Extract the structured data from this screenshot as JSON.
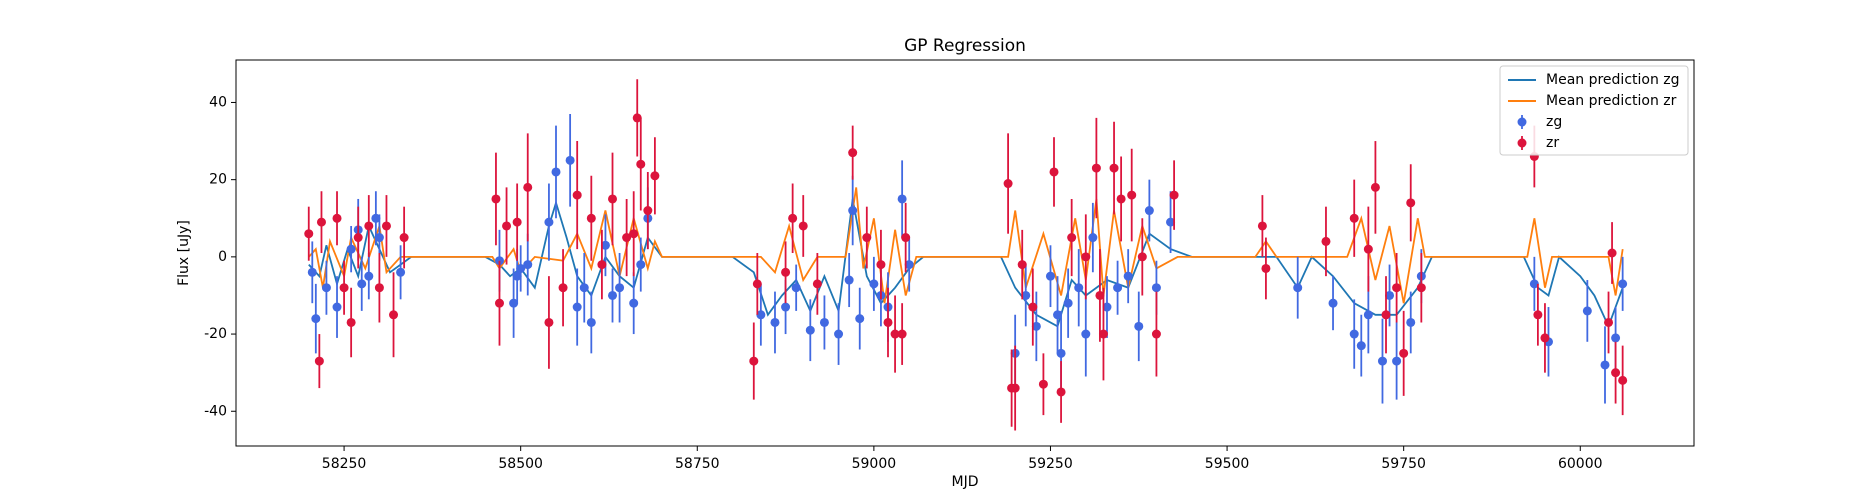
{
  "chart_data": {
    "type": "scatter",
    "title": "GP Regression",
    "xlabel": "MJD",
    "ylabel": "Flux [uJy]",
    "xlim": [
      58097,
      60161
    ],
    "ylim": [
      -49,
      51
    ],
    "xticks": [
      58250,
      58500,
      58750,
      59000,
      59250,
      59500,
      59750,
      60000
    ],
    "yticks": [
      -40,
      -20,
      0,
      20,
      40
    ],
    "legend": "upper right",
    "series": [
      {
        "name": "Mean prediction zg",
        "kind": "line",
        "color": "#1f77b4",
        "x": [
          58200,
          58215,
          58225,
          58240,
          58255,
          58270,
          58285,
          58300,
          58315,
          58330,
          58345,
          58450,
          58470,
          58485,
          58500,
          58520,
          58540,
          58550,
          58565,
          58580,
          58600,
          58620,
          58640,
          58660,
          58680,
          58700,
          58800,
          58830,
          58850,
          58870,
          58890,
          58910,
          58930,
          58950,
          58970,
          58990,
          59010,
          59030,
          59050,
          59070,
          59180,
          59200,
          59230,
          59260,
          59280,
          59300,
          59330,
          59360,
          59390,
          59420,
          59450,
          59570,
          59600,
          59620,
          59650,
          59680,
          59710,
          59740,
          59770,
          59790,
          59920,
          59940,
          59955,
          59970,
          60000,
          60020,
          60040,
          60060
        ],
        "values": [
          -2,
          -5,
          3,
          -7,
          2,
          -5,
          8,
          2,
          -4,
          -2,
          0,
          0,
          -2,
          -5,
          -3,
          -8,
          8,
          14,
          5,
          -5,
          -10,
          0,
          -5,
          -8,
          5,
          0,
          0,
          -4,
          -15,
          -10,
          -6,
          -14,
          -5,
          -14,
          15,
          -5,
          -12,
          -8,
          -3,
          0,
          0,
          -8,
          -15,
          -18,
          -6,
          -10,
          -6,
          -8,
          6,
          2,
          0,
          0,
          -8,
          0,
          -5,
          -12,
          -15,
          -15,
          -8,
          0,
          0,
          -8,
          -10,
          0,
          -5,
          -10,
          -18,
          -8
        ]
      },
      {
        "name": "Mean prediction zr",
        "kind": "line",
        "color": "#ff7f0e",
        "x": [
          58200,
          58210,
          58220,
          58230,
          58250,
          58260,
          58280,
          58300,
          58310,
          58330,
          58460,
          58470,
          58490,
          58500,
          58520,
          58560,
          58580,
          58600,
          58620,
          58640,
          58660,
          58680,
          58690,
          58700,
          58840,
          58860,
          58880,
          58900,
          58920,
          58960,
          58975,
          58985,
          59000,
          59015,
          59030,
          59045,
          59060,
          59190,
          59200,
          59215,
          59240,
          59265,
          59285,
          59300,
          59315,
          59325,
          59340,
          59360,
          59380,
          59400,
          59430,
          59540,
          59555,
          59570,
          59670,
          59690,
          59710,
          59730,
          59750,
          59770,
          59780,
          59925,
          59935,
          59950,
          59960,
          60040,
          60050,
          60060
        ],
        "values": [
          0,
          2,
          -8,
          4,
          -5,
          5,
          -3,
          8,
          -4,
          0,
          0,
          -3,
          2,
          -4,
          0,
          -1,
          6,
          -3,
          12,
          -5,
          10,
          -3,
          4,
          0,
          0,
          -4,
          8,
          -6,
          0,
          0,
          18,
          -3,
          10,
          -12,
          7,
          -10,
          0,
          0,
          12,
          -8,
          6,
          -10,
          10,
          -6,
          15,
          -10,
          12,
          -8,
          8,
          -3,
          0,
          0,
          4,
          0,
          0,
          10,
          -6,
          8,
          -12,
          10,
          0,
          0,
          10,
          -8,
          0,
          0,
          -10,
          2
        ]
      },
      {
        "name": "zg",
        "kind": "errorbar",
        "color": "#4169e1",
        "x": [
          58205,
          58210,
          58225,
          58240,
          58260,
          58270,
          58275,
          58285,
          58295,
          58300,
          58330,
          58470,
          58490,
          58495,
          58500,
          58510,
          58540,
          58550,
          58570,
          58580,
          58590,
          58600,
          58620,
          58630,
          58640,
          58660,
          58670,
          58680,
          58840,
          58860,
          58875,
          58890,
          58910,
          58930,
          58950,
          58965,
          58970,
          58980,
          59000,
          59010,
          59020,
          59040,
          59050,
          59200,
          59215,
          59230,
          59250,
          59260,
          59265,
          59275,
          59290,
          59300,
          59310,
          59330,
          59345,
          59360,
          59375,
          59390,
          59400,
          59420,
          59600,
          59650,
          59680,
          59690,
          59700,
          59720,
          59730,
          59740,
          59760,
          59775,
          59935,
          59955,
          60010,
          60035,
          60050,
          60060
        ],
        "values": [
          -4,
          -16,
          -8,
          -13,
          2,
          7,
          -7,
          -5,
          10,
          5,
          -4,
          -1,
          -12,
          -5,
          -3,
          -2,
          9,
          22,
          25,
          -13,
          -8,
          -17,
          3,
          -10,
          -8,
          -12,
          -2,
          10,
          -15,
          -17,
          -13,
          -8,
          -19,
          -17,
          -20,
          -6,
          12,
          -16,
          -7,
          -10,
          -13,
          15,
          -2,
          -25,
          -10,
          -18,
          -5,
          -15,
          -25,
          -12,
          -8,
          -20,
          5,
          -13,
          -8,
          -5,
          -18,
          12,
          -8,
          9,
          -8,
          -12,
          -20,
          -23,
          -15,
          -27,
          -10,
          -27,
          -17,
          -5,
          -7,
          -22,
          -14,
          -28,
          -21,
          -7
        ],
        "errors": [
          8,
          9,
          7,
          8,
          6,
          8,
          7,
          6,
          7,
          6,
          7,
          8,
          9,
          7,
          6,
          8,
          10,
          12,
          12,
          10,
          9,
          8,
          8,
          7,
          9,
          8,
          7,
          8,
          8,
          8,
          7,
          6,
          8,
          7,
          8,
          7,
          9,
          8,
          7,
          8,
          9,
          10,
          7,
          10,
          8,
          9,
          8,
          10,
          11,
          9,
          10,
          11,
          9,
          8,
          7,
          7,
          9,
          8,
          7,
          8,
          8,
          7,
          9,
          8,
          10,
          11,
          8,
          10,
          8,
          7,
          7,
          9,
          8,
          10,
          8,
          7
        ]
      },
      {
        "name": "zr",
        "kind": "errorbar",
        "color": "#dc143c",
        "x": [
          58200,
          58215,
          58218,
          58240,
          58250,
          58260,
          58270,
          58285,
          58300,
          58310,
          58320,
          58335,
          58465,
          58470,
          58480,
          58495,
          58510,
          58540,
          58560,
          58580,
          58600,
          58615,
          58630,
          58650,
          58660,
          58665,
          58670,
          58680,
          58690,
          58830,
          58835,
          58875,
          58885,
          58900,
          58920,
          58970,
          58990,
          59010,
          59020,
          59030,
          59040,
          59045,
          59190,
          59195,
          59200,
          59210,
          59225,
          59240,
          59255,
          59265,
          59280,
          59300,
          59315,
          59320,
          59325,
          59340,
          59350,
          59365,
          59380,
          59400,
          59425,
          59550,
          59555,
          59640,
          59680,
          59700,
          59710,
          59725,
          59740,
          59750,
          59760,
          59775,
          59935,
          59940,
          59950,
          60040,
          60045,
          60050,
          60060
        ],
        "values": [
          6,
          -27,
          9,
          10,
          -8,
          -17,
          5,
          8,
          -8,
          8,
          -15,
          5,
          15,
          -12,
          8,
          9,
          18,
          -17,
          -8,
          16,
          10,
          -2,
          15,
          5,
          6,
          36,
          24,
          12,
          21,
          -27,
          -7,
          -4,
          10,
          8,
          -7,
          27,
          5,
          -2,
          -17,
          -20,
          -20,
          5,
          19,
          -34,
          -34,
          -2,
          -13,
          -33,
          22,
          -35,
          5,
          0,
          23,
          -10,
          -20,
          23,
          15,
          16,
          0,
          -20,
          16,
          8,
          -3,
          4,
          10,
          2,
          18,
          -15,
          -8,
          -25,
          14,
          -8,
          26,
          -15,
          -21,
          -17,
          1,
          -30,
          -32
        ],
        "errors": [
          7,
          7,
          8,
          7,
          7,
          9,
          8,
          8,
          9,
          8,
          11,
          8,
          12,
          11,
          10,
          10,
          14,
          12,
          10,
          14,
          11,
          9,
          12,
          10,
          11,
          10,
          12,
          10,
          10,
          10,
          8,
          8,
          9,
          8,
          8,
          7,
          8,
          9,
          9,
          10,
          8,
          9,
          13,
          10,
          11,
          9,
          10,
          8,
          9,
          8,
          10,
          11,
          13,
          12,
          12,
          12,
          11,
          12,
          10,
          11,
          9,
          8,
          8,
          9,
          10,
          11,
          12,
          10,
          9,
          11,
          10,
          9,
          8,
          8,
          9,
          8,
          8,
          8,
          9
        ]
      }
    ]
  }
}
